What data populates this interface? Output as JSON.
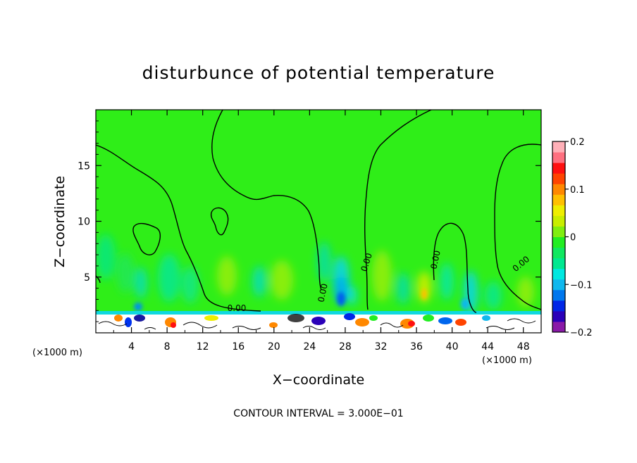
{
  "chart_data": {
    "type": "heatmap",
    "title": "disturbunce of potential temperature",
    "xlabel": "X−coordinate",
    "ylabel": "Z−coordinate",
    "x_unit": "(×1000 m)",
    "z_unit": "(×1000 m)",
    "xlim": [
      0,
      50
    ],
    "ylim": [
      0,
      20
    ],
    "x_ticks": [
      4,
      8,
      12,
      16,
      20,
      24,
      28,
      32,
      36,
      40,
      44,
      48
    ],
    "y_ticks": [
      5,
      10,
      15
    ],
    "colorbar": {
      "min": -0.2,
      "max": 0.2,
      "ticks": [
        -0.2,
        -0.1,
        0,
        0.1,
        0.2
      ],
      "tick_labels": [
        "−0.2",
        "−0.1",
        "0",
        "0.1",
        "0.2"
      ],
      "colors": [
        "#8a1aa8",
        "#2a00b8",
        "#0026e6",
        "#0077ee",
        "#10b8ee",
        "#00e8e0",
        "#00e890",
        "#10e860",
        "#22ee22",
        "#80ee10",
        "#c8ee00",
        "#eeee00",
        "#ffc000",
        "#ff8800",
        "#ff4400",
        "#ff1010",
        "#ff7080",
        "#ffb0b8"
      ]
    },
    "contour_interval": "CONTOUR INTERVAL = 3.000E−01",
    "contour_labels": [
      "0.00",
      "0.00",
      "0.00",
      "0.00",
      "0.00",
      "0.00"
    ],
    "grid": false,
    "background_value": 0.01
  }
}
